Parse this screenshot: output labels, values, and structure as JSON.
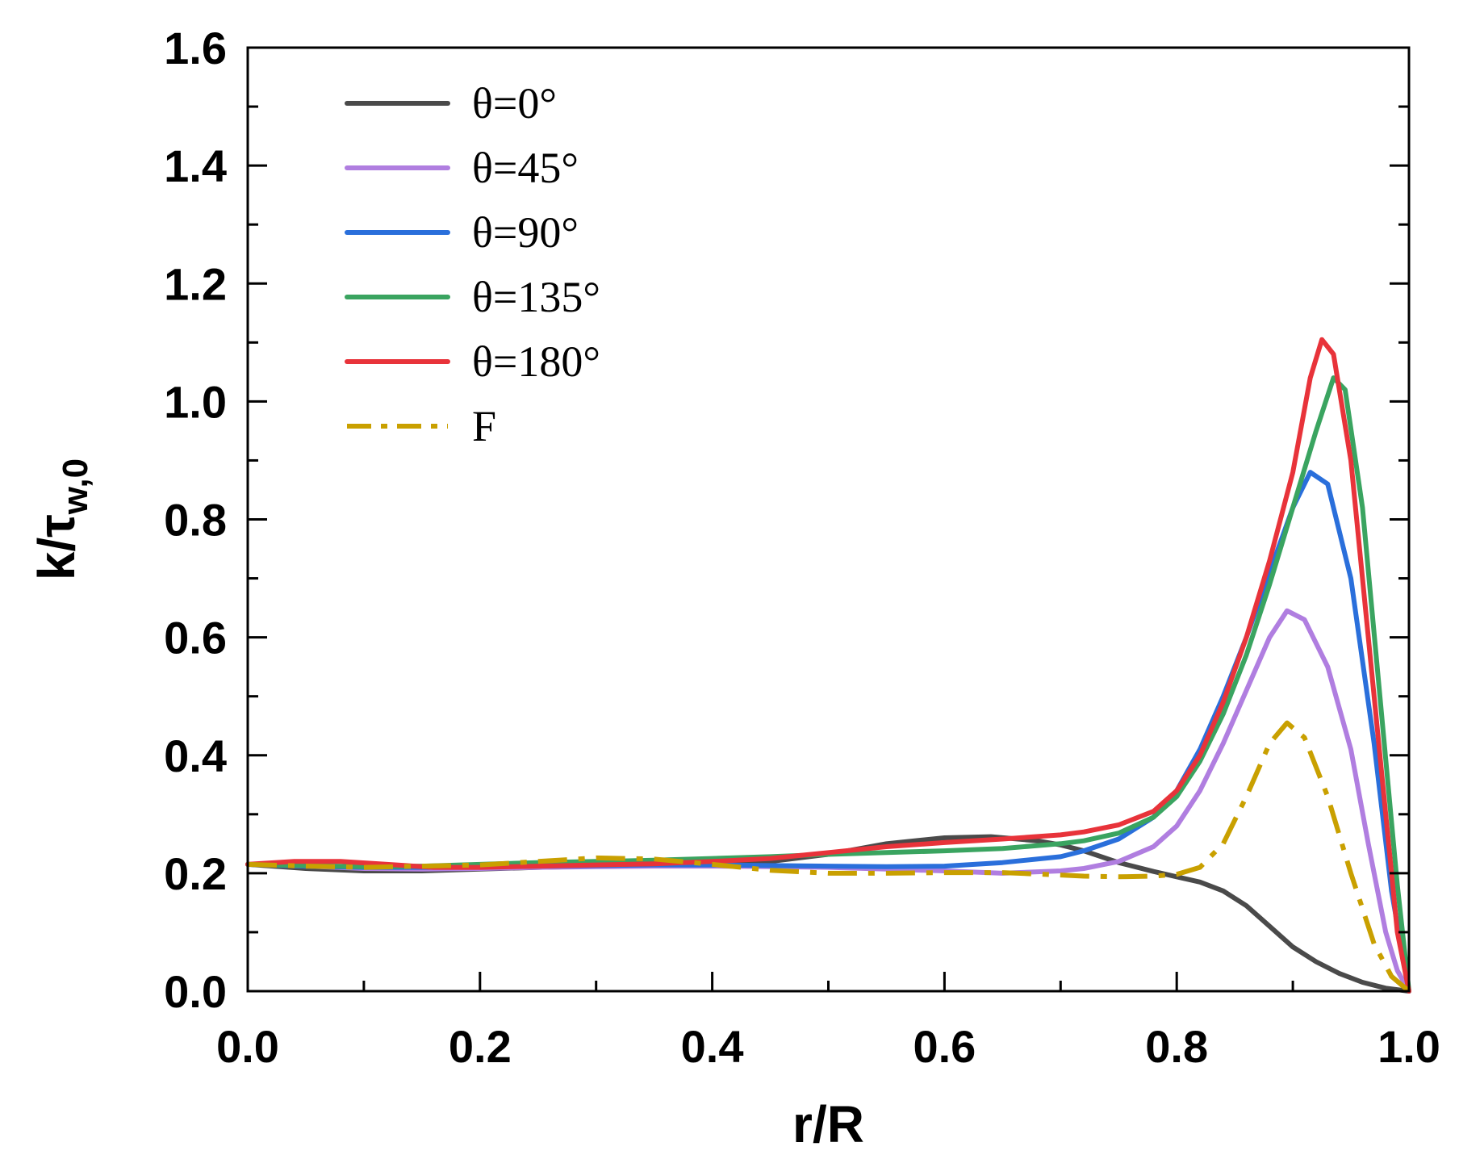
{
  "chart_data": {
    "type": "line",
    "xlabel": "r/R",
    "ylabel": {
      "main": "k/τ",
      "sub": "w,0"
    },
    "xlim": [
      0,
      1.0
    ],
    "ylim": [
      0,
      1.6
    ],
    "xticks": [
      0.0,
      0.2,
      0.4,
      0.6,
      0.8,
      1.0
    ],
    "xtick_labels": [
      "0.0",
      "0.2",
      "0.4",
      "0.6",
      "0.8",
      "1.0"
    ],
    "yticks": [
      0.0,
      0.2,
      0.4,
      0.6,
      0.8,
      1.0,
      1.2,
      1.4,
      1.6
    ],
    "ytick_labels": [
      "0.0",
      "0.2",
      "0.4",
      "0.6",
      "0.8",
      "1.0",
      "1.2",
      "1.4",
      "1.6"
    ],
    "grid": false,
    "legend_position": "top-left",
    "series": [
      {
        "name": "θ=0°",
        "color": "#4a4a4a",
        "dash": "solid",
        "points": [
          [
            0,
            0.215
          ],
          [
            0.05,
            0.208
          ],
          [
            0.1,
            0.204
          ],
          [
            0.15,
            0.204
          ],
          [
            0.2,
            0.207
          ],
          [
            0.25,
            0.21
          ],
          [
            0.3,
            0.212
          ],
          [
            0.35,
            0.213
          ],
          [
            0.4,
            0.215
          ],
          [
            0.45,
            0.22
          ],
          [
            0.5,
            0.232
          ],
          [
            0.55,
            0.25
          ],
          [
            0.6,
            0.26
          ],
          [
            0.64,
            0.262
          ],
          [
            0.68,
            0.255
          ],
          [
            0.7,
            0.248
          ],
          [
            0.72,
            0.238
          ],
          [
            0.75,
            0.218
          ],
          [
            0.78,
            0.203
          ],
          [
            0.8,
            0.194
          ],
          [
            0.82,
            0.185
          ],
          [
            0.84,
            0.17
          ],
          [
            0.86,
            0.145
          ],
          [
            0.88,
            0.11
          ],
          [
            0.9,
            0.075
          ],
          [
            0.92,
            0.05
          ],
          [
            0.94,
            0.03
          ],
          [
            0.96,
            0.015
          ],
          [
            0.98,
            0.005
          ],
          [
            1.0,
            0.0
          ]
        ]
      },
      {
        "name": "θ=45°",
        "color": "#b07ee0",
        "dash": "solid",
        "points": [
          [
            0,
            0.215
          ],
          [
            0.05,
            0.212
          ],
          [
            0.1,
            0.208
          ],
          [
            0.15,
            0.207
          ],
          [
            0.2,
            0.208
          ],
          [
            0.25,
            0.21
          ],
          [
            0.3,
            0.211
          ],
          [
            0.35,
            0.212
          ],
          [
            0.4,
            0.212
          ],
          [
            0.45,
            0.211
          ],
          [
            0.5,
            0.21
          ],
          [
            0.55,
            0.207
          ],
          [
            0.6,
            0.204
          ],
          [
            0.65,
            0.2
          ],
          [
            0.7,
            0.204
          ],
          [
            0.72,
            0.208
          ],
          [
            0.75,
            0.22
          ],
          [
            0.78,
            0.245
          ],
          [
            0.8,
            0.28
          ],
          [
            0.82,
            0.34
          ],
          [
            0.84,
            0.42
          ],
          [
            0.86,
            0.51
          ],
          [
            0.88,
            0.6
          ],
          [
            0.895,
            0.645
          ],
          [
            0.91,
            0.63
          ],
          [
            0.93,
            0.55
          ],
          [
            0.95,
            0.41
          ],
          [
            0.965,
            0.25
          ],
          [
            0.98,
            0.1
          ],
          [
            0.99,
            0.035
          ],
          [
            1.0,
            0.0
          ]
        ]
      },
      {
        "name": "θ=90°",
        "color": "#2a6fdb",
        "dash": "solid",
        "points": [
          [
            0,
            0.215
          ],
          [
            0.05,
            0.212
          ],
          [
            0.1,
            0.21
          ],
          [
            0.15,
            0.21
          ],
          [
            0.2,
            0.211
          ],
          [
            0.25,
            0.212
          ],
          [
            0.3,
            0.213
          ],
          [
            0.35,
            0.214
          ],
          [
            0.4,
            0.214
          ],
          [
            0.45,
            0.213
          ],
          [
            0.5,
            0.212
          ],
          [
            0.55,
            0.211
          ],
          [
            0.6,
            0.212
          ],
          [
            0.65,
            0.218
          ],
          [
            0.7,
            0.228
          ],
          [
            0.72,
            0.238
          ],
          [
            0.75,
            0.258
          ],
          [
            0.78,
            0.295
          ],
          [
            0.8,
            0.34
          ],
          [
            0.82,
            0.41
          ],
          [
            0.84,
            0.5
          ],
          [
            0.86,
            0.6
          ],
          [
            0.88,
            0.71
          ],
          [
            0.9,
            0.82
          ],
          [
            0.915,
            0.88
          ],
          [
            0.93,
            0.86
          ],
          [
            0.95,
            0.7
          ],
          [
            0.97,
            0.42
          ],
          [
            0.985,
            0.17
          ],
          [
            1.0,
            0.0
          ]
        ]
      },
      {
        "name": "θ=135°",
        "color": "#3aa460",
        "dash": "solid",
        "points": [
          [
            0,
            0.215
          ],
          [
            0.05,
            0.213
          ],
          [
            0.1,
            0.211
          ],
          [
            0.15,
            0.212
          ],
          [
            0.2,
            0.215
          ],
          [
            0.25,
            0.218
          ],
          [
            0.3,
            0.22
          ],
          [
            0.35,
            0.222
          ],
          [
            0.4,
            0.225
          ],
          [
            0.45,
            0.228
          ],
          [
            0.5,
            0.232
          ],
          [
            0.55,
            0.235
          ],
          [
            0.6,
            0.238
          ],
          [
            0.65,
            0.242
          ],
          [
            0.7,
            0.25
          ],
          [
            0.72,
            0.255
          ],
          [
            0.75,
            0.268
          ],
          [
            0.78,
            0.295
          ],
          [
            0.8,
            0.33
          ],
          [
            0.82,
            0.39
          ],
          [
            0.84,
            0.47
          ],
          [
            0.86,
            0.57
          ],
          [
            0.88,
            0.69
          ],
          [
            0.9,
            0.82
          ],
          [
            0.92,
            0.95
          ],
          [
            0.935,
            1.04
          ],
          [
            0.945,
            1.02
          ],
          [
            0.96,
            0.82
          ],
          [
            0.975,
            0.5
          ],
          [
            0.99,
            0.18
          ],
          [
            1.0,
            0.0
          ]
        ]
      },
      {
        "name": "θ=180°",
        "color": "#e8333a",
        "dash": "solid",
        "points": [
          [
            0,
            0.215
          ],
          [
            0.04,
            0.22
          ],
          [
            0.08,
            0.22
          ],
          [
            0.12,
            0.215
          ],
          [
            0.16,
            0.21
          ],
          [
            0.2,
            0.21
          ],
          [
            0.25,
            0.212
          ],
          [
            0.3,
            0.214
          ],
          [
            0.35,
            0.216
          ],
          [
            0.4,
            0.22
          ],
          [
            0.45,
            0.225
          ],
          [
            0.5,
            0.235
          ],
          [
            0.55,
            0.245
          ],
          [
            0.6,
            0.252
          ],
          [
            0.65,
            0.258
          ],
          [
            0.7,
            0.265
          ],
          [
            0.72,
            0.27
          ],
          [
            0.75,
            0.282
          ],
          [
            0.78,
            0.305
          ],
          [
            0.8,
            0.34
          ],
          [
            0.82,
            0.4
          ],
          [
            0.84,
            0.49
          ],
          [
            0.86,
            0.6
          ],
          [
            0.88,
            0.73
          ],
          [
            0.9,
            0.88
          ],
          [
            0.915,
            1.04
          ],
          [
            0.925,
            1.105
          ],
          [
            0.935,
            1.08
          ],
          [
            0.95,
            0.9
          ],
          [
            0.965,
            0.6
          ],
          [
            0.98,
            0.3
          ],
          [
            0.99,
            0.1
          ],
          [
            1.0,
            0.0
          ]
        ]
      },
      {
        "name": "F",
        "color": "#c9a000",
        "dash": "dashdot",
        "points": [
          [
            0,
            0.215
          ],
          [
            0.05,
            0.212
          ],
          [
            0.1,
            0.21
          ],
          [
            0.15,
            0.212
          ],
          [
            0.2,
            0.214
          ],
          [
            0.25,
            0.22
          ],
          [
            0.3,
            0.226
          ],
          [
            0.35,
            0.224
          ],
          [
            0.4,
            0.215
          ],
          [
            0.45,
            0.205
          ],
          [
            0.5,
            0.2
          ],
          [
            0.55,
            0.2
          ],
          [
            0.6,
            0.201
          ],
          [
            0.65,
            0.201
          ],
          [
            0.7,
            0.197
          ],
          [
            0.72,
            0.195
          ],
          [
            0.75,
            0.194
          ],
          [
            0.78,
            0.195
          ],
          [
            0.8,
            0.198
          ],
          [
            0.82,
            0.21
          ],
          [
            0.84,
            0.25
          ],
          [
            0.86,
            0.33
          ],
          [
            0.88,
            0.42
          ],
          [
            0.895,
            0.455
          ],
          [
            0.91,
            0.43
          ],
          [
            0.93,
            0.33
          ],
          [
            0.95,
            0.2
          ],
          [
            0.97,
            0.08
          ],
          [
            0.985,
            0.025
          ],
          [
            1.0,
            0.0
          ]
        ]
      }
    ]
  }
}
